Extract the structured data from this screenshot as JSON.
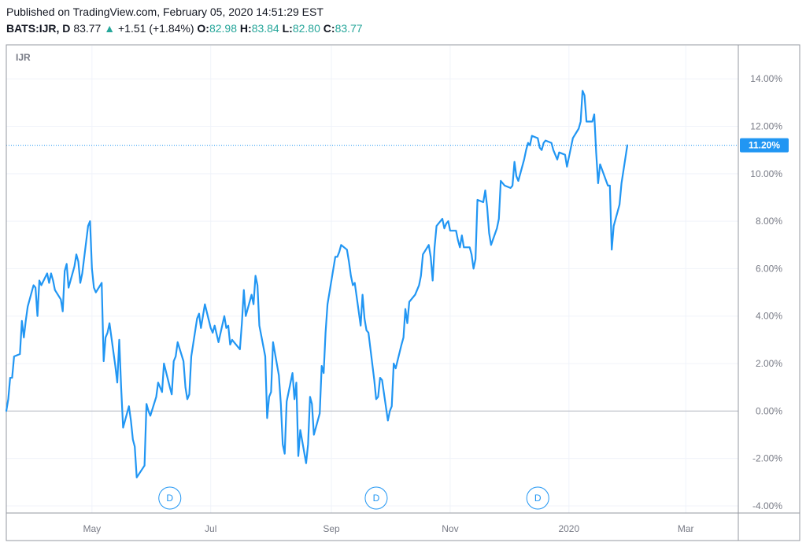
{
  "header": {
    "published": "Published on TradingView.com, February 05, 2020 14:51:29 EST",
    "symbol": "BATS:IJR, D",
    "last": "83.77",
    "change_arrow": "▲",
    "change": "+1.51 (+1.84%)",
    "open_label": "O:",
    "open": "82.98",
    "high_label": "H:",
    "high": "83.84",
    "low_label": "L:",
    "low": "82.80",
    "close_label": "C:",
    "close": "83.77"
  },
  "colors": {
    "line": "#2196f3",
    "up": "#26a69a",
    "grid": "#f0f3fa",
    "axis_text": "#787b86",
    "border": "#b2b5be"
  },
  "chart_data": {
    "type": "line",
    "title": "IJR",
    "ylabel": "",
    "xlabel": "",
    "ylim": [
      -4.3,
      15.4
    ],
    "y_ticks": [
      "14.00%",
      "12.00%",
      "10.00%",
      "8.00%",
      "6.00%",
      "4.00%",
      "2.00%",
      "0.00%",
      "-2.00%",
      "-4.00%"
    ],
    "y_tick_values": [
      14,
      12,
      10,
      8,
      6,
      4,
      2,
      0,
      -2,
      -4
    ],
    "x_ticks": [
      "May",
      "Jul",
      "Sep",
      "Nov",
      "2020",
      "Mar"
    ],
    "x_tick_dates": [
      "2019-05-01",
      "2019-07-01",
      "2019-09-01",
      "2019-11-01",
      "2020-01-01",
      "2020-03-01"
    ],
    "xlim": [
      "2019-03-18",
      "2020-03-28"
    ],
    "last_value_label": "11.20%",
    "last_value": 11.2,
    "event_markers": [
      {
        "label": "D",
        "date": "2019-06-10"
      },
      {
        "label": "D",
        "date": "2019-09-24"
      },
      {
        "label": "D",
        "date": "2019-12-16"
      }
    ],
    "series": [
      {
        "values": [
          [
            "2019-03-18",
            0.0
          ],
          [
            "2019-03-19",
            0.5
          ],
          [
            "2019-03-20",
            1.4
          ],
          [
            "2019-03-21",
            1.4
          ],
          [
            "2019-03-22",
            2.3
          ],
          [
            "2019-03-25",
            2.4
          ],
          [
            "2019-03-26",
            3.8
          ],
          [
            "2019-03-27",
            3.1
          ],
          [
            "2019-03-28",
            3.8
          ],
          [
            "2019-03-29",
            4.4
          ],
          [
            "2019-04-01",
            5.3
          ],
          [
            "2019-04-02",
            5.2
          ],
          [
            "2019-04-03",
            4.0
          ],
          [
            "2019-04-04",
            5.5
          ],
          [
            "2019-04-05",
            5.3
          ],
          [
            "2019-04-08",
            5.8
          ],
          [
            "2019-04-09",
            5.4
          ],
          [
            "2019-04-10",
            5.8
          ],
          [
            "2019-04-11",
            5.5
          ],
          [
            "2019-04-12",
            5.1
          ],
          [
            "2019-04-15",
            4.7
          ],
          [
            "2019-04-16",
            4.2
          ],
          [
            "2019-04-17",
            5.9
          ],
          [
            "2019-04-18",
            6.2
          ],
          [
            "2019-04-19",
            5.2
          ],
          [
            "2019-04-22",
            6.1
          ],
          [
            "2019-04-23",
            6.6
          ],
          [
            "2019-04-24",
            6.3
          ],
          [
            "2019-04-25",
            5.4
          ],
          [
            "2019-04-26",
            5.8
          ],
          [
            "2019-04-29",
            7.8
          ],
          [
            "2019-04-30",
            8.0
          ],
          [
            "2019-05-01",
            6.0
          ],
          [
            "2019-05-02",
            5.2
          ],
          [
            "2019-05-03",
            5.0
          ],
          [
            "2019-05-06",
            5.4
          ],
          [
            "2019-05-07",
            2.1
          ],
          [
            "2019-05-08",
            3.1
          ],
          [
            "2019-05-09",
            3.3
          ],
          [
            "2019-05-10",
            3.7
          ],
          [
            "2019-05-13",
            1.9
          ],
          [
            "2019-05-14",
            1.2
          ],
          [
            "2019-05-15",
            3.0
          ],
          [
            "2019-05-16",
            1.0
          ],
          [
            "2019-05-17",
            -0.7
          ],
          [
            "2019-05-20",
            0.2
          ],
          [
            "2019-05-21",
            -0.4
          ],
          [
            "2019-05-22",
            -1.2
          ],
          [
            "2019-05-23",
            -1.5
          ],
          [
            "2019-05-24",
            -2.8
          ],
          [
            "2019-05-28",
            -2.3
          ],
          [
            "2019-05-29",
            0.3
          ],
          [
            "2019-05-30",
            0.0
          ],
          [
            "2019-05-31",
            -0.2
          ],
          [
            "2019-06-03",
            0.6
          ],
          [
            "2019-06-04",
            1.2
          ],
          [
            "2019-06-05",
            1.0
          ],
          [
            "2019-06-06",
            0.8
          ],
          [
            "2019-06-07",
            2.0
          ],
          [
            "2019-06-10",
            1.0
          ],
          [
            "2019-06-11",
            0.7
          ],
          [
            "2019-06-12",
            2.1
          ],
          [
            "2019-06-13",
            2.3
          ],
          [
            "2019-06-14",
            2.9
          ],
          [
            "2019-06-17",
            2.1
          ],
          [
            "2019-06-18",
            1.0
          ],
          [
            "2019-06-19",
            0.5
          ],
          [
            "2019-06-20",
            0.7
          ],
          [
            "2019-06-21",
            2.3
          ],
          [
            "2019-06-24",
            3.9
          ],
          [
            "2019-06-25",
            4.1
          ],
          [
            "2019-06-26",
            3.5
          ],
          [
            "2019-06-27",
            4.0
          ],
          [
            "2019-06-28",
            4.5
          ],
          [
            "2019-07-01",
            3.5
          ],
          [
            "2019-07-02",
            3.3
          ],
          [
            "2019-07-03",
            3.6
          ],
          [
            "2019-07-05",
            2.9
          ],
          [
            "2019-07-08",
            4.0
          ],
          [
            "2019-07-09",
            3.5
          ],
          [
            "2019-07-10",
            3.6
          ],
          [
            "2019-07-11",
            2.8
          ],
          [
            "2019-07-12",
            3.0
          ],
          [
            "2019-07-15",
            2.7
          ],
          [
            "2019-07-16",
            2.6
          ],
          [
            "2019-07-17",
            3.7
          ],
          [
            "2019-07-18",
            5.1
          ],
          [
            "2019-07-19",
            4.0
          ],
          [
            "2019-07-22",
            4.9
          ],
          [
            "2019-07-23",
            4.5
          ],
          [
            "2019-07-24",
            5.7
          ],
          [
            "2019-07-25",
            5.3
          ],
          [
            "2019-07-26",
            3.6
          ],
          [
            "2019-07-29",
            2.3
          ],
          [
            "2019-07-30",
            -0.3
          ],
          [
            "2019-07-31",
            0.6
          ],
          [
            "2019-08-01",
            0.8
          ],
          [
            "2019-08-02",
            2.9
          ],
          [
            "2019-08-05",
            1.5
          ],
          [
            "2019-08-06",
            0.3
          ],
          [
            "2019-08-07",
            -1.4
          ],
          [
            "2019-08-08",
            -1.8
          ],
          [
            "2019-08-09",
            0.4
          ],
          [
            "2019-08-12",
            1.6
          ],
          [
            "2019-08-13",
            0.5
          ],
          [
            "2019-08-14",
            1.2
          ],
          [
            "2019-08-15",
            -1.9
          ],
          [
            "2019-08-16",
            -0.8
          ],
          [
            "2019-08-19",
            -2.2
          ],
          [
            "2019-08-20",
            -1.4
          ],
          [
            "2019-08-21",
            0.6
          ],
          [
            "2019-08-22",
            0.3
          ],
          [
            "2019-08-23",
            -1.0
          ],
          [
            "2019-08-26",
            -0.1
          ],
          [
            "2019-08-27",
            1.9
          ],
          [
            "2019-08-28",
            1.6
          ],
          [
            "2019-08-29",
            3.3
          ],
          [
            "2019-08-30",
            4.5
          ],
          [
            "2019-09-03",
            6.5
          ],
          [
            "2019-09-04",
            6.5
          ],
          [
            "2019-09-05",
            6.7
          ],
          [
            "2019-09-06",
            7.0
          ],
          [
            "2019-09-09",
            6.8
          ],
          [
            "2019-09-10",
            6.3
          ],
          [
            "2019-09-11",
            5.7
          ],
          [
            "2019-09-12",
            5.3
          ],
          [
            "2019-09-13",
            5.4
          ],
          [
            "2019-09-16",
            3.6
          ],
          [
            "2019-09-17",
            4.9
          ],
          [
            "2019-09-18",
            3.9
          ],
          [
            "2019-09-19",
            3.4
          ],
          [
            "2019-09-20",
            3.3
          ],
          [
            "2019-09-23",
            1.3
          ],
          [
            "2019-09-24",
            0.5
          ],
          [
            "2019-09-25",
            0.6
          ],
          [
            "2019-09-26",
            1.4
          ],
          [
            "2019-09-27",
            1.3
          ],
          [
            "2019-09-30",
            -0.4
          ],
          [
            "2019-10-01",
            0.0
          ],
          [
            "2019-10-02",
            0.2
          ],
          [
            "2019-10-03",
            2.0
          ],
          [
            "2019-10-04",
            1.8
          ],
          [
            "2019-10-07",
            2.8
          ],
          [
            "2019-10-08",
            3.1
          ],
          [
            "2019-10-09",
            4.3
          ],
          [
            "2019-10-10",
            3.7
          ],
          [
            "2019-10-11",
            4.6
          ],
          [
            "2019-10-14",
            4.9
          ],
          [
            "2019-10-15",
            5.1
          ],
          [
            "2019-10-16",
            5.3
          ],
          [
            "2019-10-17",
            5.7
          ],
          [
            "2019-10-18",
            6.6
          ],
          [
            "2019-10-21",
            7.0
          ],
          [
            "2019-10-22",
            6.5
          ],
          [
            "2019-10-23",
            5.5
          ],
          [
            "2019-10-24",
            6.9
          ],
          [
            "2019-10-25",
            7.8
          ],
          [
            "2019-10-28",
            8.1
          ],
          [
            "2019-10-29",
            7.7
          ],
          [
            "2019-10-30",
            7.9
          ],
          [
            "2019-10-31",
            8.0
          ],
          [
            "2019-11-01",
            7.6
          ],
          [
            "2019-11-04",
            7.6
          ],
          [
            "2019-11-05",
            7.2
          ],
          [
            "2019-11-06",
            6.9
          ],
          [
            "2019-11-07",
            7.4
          ],
          [
            "2019-11-08",
            6.9
          ],
          [
            "2019-11-11",
            6.9
          ],
          [
            "2019-11-12",
            6.6
          ],
          [
            "2019-11-13",
            6.0
          ],
          [
            "2019-11-14",
            6.4
          ],
          [
            "2019-11-15",
            8.9
          ],
          [
            "2019-11-18",
            8.8
          ],
          [
            "2019-11-19",
            9.3
          ],
          [
            "2019-11-20",
            8.6
          ],
          [
            "2019-11-21",
            7.5
          ],
          [
            "2019-11-22",
            7.0
          ],
          [
            "2019-11-25",
            7.7
          ],
          [
            "2019-11-26",
            8.1
          ],
          [
            "2019-11-27",
            9.7
          ],
          [
            "2019-11-29",
            9.5
          ],
          [
            "2019-12-02",
            9.4
          ],
          [
            "2019-12-03",
            9.5
          ],
          [
            "2019-12-04",
            10.5
          ],
          [
            "2019-12-05",
            9.9
          ],
          [
            "2019-12-06",
            9.7
          ],
          [
            "2019-12-09",
            10.6
          ],
          [
            "2019-12-10",
            11.0
          ],
          [
            "2019-12-11",
            11.3
          ],
          [
            "2019-12-12",
            11.2
          ],
          [
            "2019-12-13",
            11.6
          ],
          [
            "2019-12-16",
            11.5
          ],
          [
            "2019-12-17",
            11.1
          ],
          [
            "2019-12-18",
            11.0
          ],
          [
            "2019-12-19",
            11.3
          ],
          [
            "2019-12-20",
            11.4
          ],
          [
            "2019-12-23",
            11.3
          ],
          [
            "2019-12-24",
            11.0
          ],
          [
            "2019-12-26",
            10.6
          ],
          [
            "2019-12-27",
            10.9
          ],
          [
            "2019-12-30",
            10.8
          ],
          [
            "2019-12-31",
            10.3
          ],
          [
            "2020-01-02",
            11.1
          ],
          [
            "2020-01-03",
            11.5
          ],
          [
            "2020-01-06",
            11.9
          ],
          [
            "2020-01-07",
            12.2
          ],
          [
            "2020-01-08",
            13.5
          ],
          [
            "2020-01-09",
            13.3
          ],
          [
            "2020-01-10",
            12.2
          ],
          [
            "2020-01-13",
            12.2
          ],
          [
            "2020-01-14",
            12.5
          ],
          [
            "2020-01-15",
            10.9
          ],
          [
            "2020-01-16",
            9.6
          ],
          [
            "2020-01-17",
            10.4
          ],
          [
            "2020-01-21",
            9.5
          ],
          [
            "2020-01-22",
            9.5
          ],
          [
            "2020-01-23",
            6.8
          ],
          [
            "2020-01-24",
            7.8
          ],
          [
            "2020-01-27",
            8.7
          ],
          [
            "2020-01-28",
            9.6
          ],
          [
            "2020-01-31",
            11.2
          ]
        ]
      }
    ]
  }
}
